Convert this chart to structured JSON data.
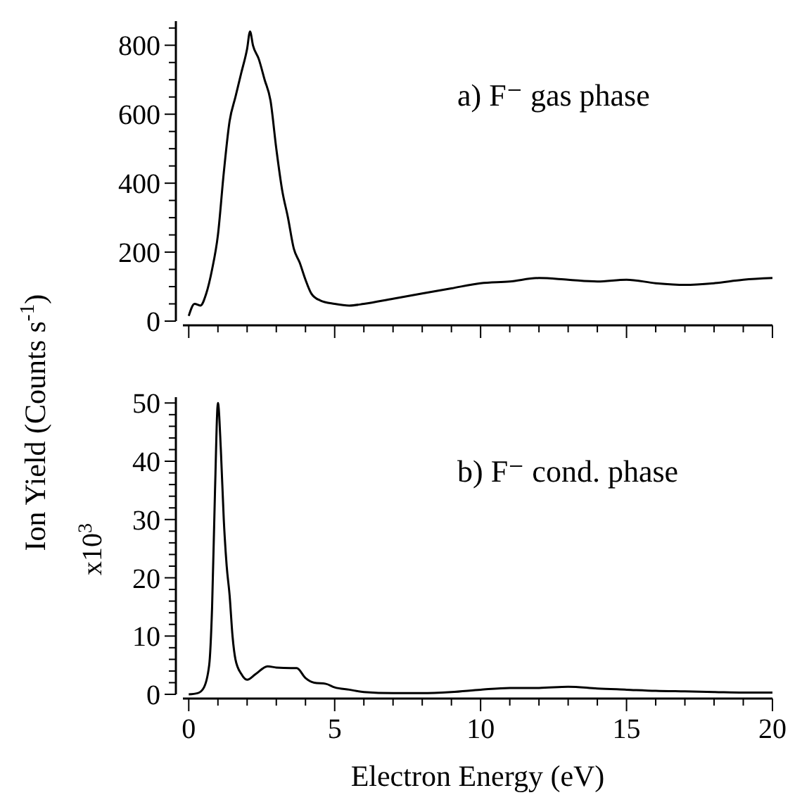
{
  "chart_data": [
    {
      "type": "line",
      "ylabel": "Ion Yield (Counts s$^{-1}$)",
      "annotations": [
        "a) F⁻  gas phase"
      ],
      "tick_labels": "y",
      "xlim": [
        -0.2,
        20
      ],
      "ylim": [
        0,
        870
      ],
      "xticks": [
        {
          "value": 0,
          "label": null
        },
        {
          "value": 1,
          "label": null
        },
        {
          "value": 2,
          "label": null
        },
        {
          "value": 3,
          "label": null
        },
        {
          "value": 4,
          "label": null
        },
        {
          "value": 5,
          "label": null
        },
        {
          "value": 6,
          "label": null
        },
        {
          "value": 7,
          "label": null
        },
        {
          "value": 8,
          "label": null
        },
        {
          "value": 9,
          "label": null
        },
        {
          "value": 10,
          "label": null
        },
        {
          "value": 11,
          "label": null
        },
        {
          "value": 12,
          "label": null
        },
        {
          "value": 13,
          "label": null
        },
        {
          "value": 14,
          "label": null
        },
        {
          "value": 15,
          "label": null
        },
        {
          "value": 16,
          "label": null
        },
        {
          "value": 17,
          "label": null
        },
        {
          "value": 18,
          "label": null
        },
        {
          "value": 19,
          "label": null
        },
        {
          "value": 20,
          "label": null
        }
      ],
      "yticks": [
        0,
        {
          "value": 50,
          "label": null
        },
        {
          "value": 100,
          "label": null
        },
        {
          "value": 150,
          "label": null
        },
        200,
        {
          "value": 250,
          "label": null
        },
        {
          "value": 300,
          "label": null
        },
        {
          "value": 350,
          "label": null
        },
        400,
        {
          "value": 450,
          "label": null
        },
        {
          "value": 500,
          "label": null
        },
        {
          "value": 550,
          "label": null
        },
        600,
        {
          "value": 650,
          "label": null
        },
        {
          "value": 700,
          "label": null
        },
        {
          "value": 750,
          "label": null
        },
        800,
        {
          "value": 850,
          "label": null
        }
      ],
      "x": [
        0,
        0.2,
        0.4,
        0.6,
        0.8,
        1.0,
        1.2,
        1.4,
        1.6,
        1.8,
        2.0,
        2.1,
        2.2,
        2.4,
        2.6,
        2.8,
        3.0,
        3.2,
        3.4,
        3.6,
        3.8,
        4.0,
        4.2,
        4.5,
        5,
        5.5,
        6,
        7,
        8,
        9,
        10,
        11,
        12,
        13,
        14,
        15,
        16,
        17,
        18,
        19,
        20
      ],
      "series": [
        {
          "color": "#000000",
          "values": [
            15,
            50,
            45,
            80,
            150,
            250,
            430,
            580,
            650,
            720,
            790,
            840,
            800,
            760,
            700,
            640,
            500,
            380,
            300,
            210,
            170,
            120,
            80,
            60,
            50,
            45,
            50,
            65,
            80,
            95,
            110,
            115,
            125,
            120,
            115,
            120,
            110,
            105,
            110,
            120,
            125
          ]
        }
      ],
      "marker": "none",
      "line_style": "solid",
      "grid": false
    },
    {
      "type": "line",
      "xlabel": "Electron Energy (eV)",
      "ylabel": "x10$^{3}$",
      "annotations": [
        "b) F⁻  cond. phase"
      ],
      "xlim": [
        -0.2,
        20
      ],
      "ylim": [
        0,
        51
      ],
      "xticks": [
        0,
        {
          "value": 1,
          "label": null
        },
        {
          "value": 2,
          "label": null
        },
        {
          "value": 3,
          "label": null
        },
        {
          "value": 4,
          "label": null
        },
        5,
        {
          "value": 6,
          "label": null
        },
        {
          "value": 7,
          "label": null
        },
        {
          "value": 8,
          "label": null
        },
        {
          "value": 9,
          "label": null
        },
        10,
        {
          "value": 11,
          "label": null
        },
        {
          "value": 12,
          "label": null
        },
        {
          "value": 13,
          "label": null
        },
        {
          "value": 14,
          "label": null
        },
        15,
        {
          "value": 16,
          "label": null
        },
        {
          "value": 17,
          "label": null
        },
        {
          "value": 18,
          "label": null
        },
        {
          "value": 19,
          "label": null
        },
        20
      ],
      "yticks": [
        0,
        {
          "value": 2,
          "label": null
        },
        {
          "value": 4,
          "label": null
        },
        {
          "value": 6,
          "label": null
        },
        {
          "value": 8,
          "label": null
        },
        10,
        {
          "value": 12,
          "label": null
        },
        {
          "value": 14,
          "label": null
        },
        {
          "value": 16,
          "label": null
        },
        {
          "value": 18,
          "label": null
        },
        20,
        {
          "value": 22,
          "label": null
        },
        {
          "value": 24,
          "label": null
        },
        {
          "value": 26,
          "label": null
        },
        {
          "value": 28,
          "label": null
        },
        30,
        {
          "value": 32,
          "label": null
        },
        {
          "value": 34,
          "label": null
        },
        {
          "value": 36,
          "label": null
        },
        {
          "value": 38,
          "label": null
        },
        40,
        {
          "value": 42,
          "label": null
        },
        {
          "value": 44,
          "label": null
        },
        {
          "value": 46,
          "label": null
        },
        {
          "value": 48,
          "label": null
        },
        50
      ],
      "x": [
        0,
        0.3,
        0.5,
        0.7,
        0.8,
        0.9,
        1.0,
        1.1,
        1.2,
        1.3,
        1.4,
        1.5,
        1.6,
        1.8,
        2.0,
        2.3,
        2.7,
        3.0,
        3.5,
        3.7,
        4.0,
        4.3,
        4.7,
        5,
        5.5,
        6,
        7,
        8,
        9,
        10,
        11,
        12,
        13,
        14,
        15,
        16,
        17,
        18,
        19,
        20
      ],
      "series": [
        {
          "color": "#000000",
          "values": [
            0,
            0.2,
            1,
            5,
            15,
            35,
            50,
            42,
            30,
            22,
            17,
            10,
            6,
            3.5,
            2.5,
            3.5,
            4.8,
            4.6,
            4.5,
            4.5,
            2.8,
            2,
            1.8,
            1.2,
            0.8,
            0.4,
            0.2,
            0.2,
            0.4,
            0.8,
            1.1,
            1.1,
            1.3,
            1.0,
            0.8,
            0.6,
            0.5,
            0.4,
            0.3,
            0.3
          ]
        }
      ],
      "marker": "none",
      "line_style": "solid",
      "grid": false
    }
  ]
}
